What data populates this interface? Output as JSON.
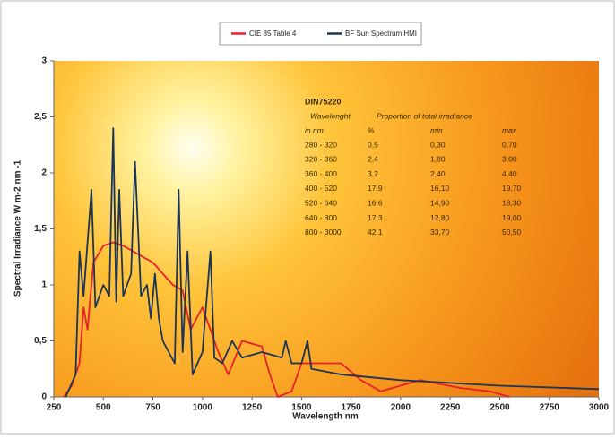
{
  "chart_data": {
    "type": "line",
    "xlabel": "Wavelength  nm",
    "ylabel": "Spectral Irradiance  W m-2 nm -1",
    "xlim": [
      250,
      3000
    ],
    "ylim": [
      0,
      3
    ],
    "xticks": [
      250,
      500,
      750,
      1000,
      1250,
      1500,
      1750,
      2000,
      2250,
      2500,
      2750,
      3000
    ],
    "yticks": [
      0,
      {
        "value": 0.5,
        "label": "0,5"
      },
      1,
      {
        "value": 1.5,
        "label": "1,5"
      },
      2,
      {
        "value": 2.5,
        "label": "2,5"
      },
      3
    ],
    "series": [
      {
        "name": "CIE 85 Table 4",
        "color": "#e8202a",
        "x": [
          300,
          340,
          380,
          400,
          420,
          450,
          500,
          550,
          600,
          650,
          700,
          750,
          800,
          850,
          900,
          940,
          1000,
          1080,
          1130,
          1200,
          1300,
          1340,
          1380,
          1450,
          1500,
          1700,
          1800,
          1900,
          2000,
          2100,
          2300,
          2450,
          2550
        ],
        "values": [
          0,
          0.1,
          0.3,
          0.8,
          0.6,
          1.2,
          1.35,
          1.38,
          1.35,
          1.3,
          1.25,
          1.2,
          1.1,
          1.0,
          0.95,
          0.6,
          0.8,
          0.4,
          0.2,
          0.5,
          0.45,
          0.2,
          0.0,
          0.05,
          0.3,
          0.3,
          0.15,
          0.05,
          0.1,
          0.15,
          0.08,
          0.05,
          0
        ]
      },
      {
        "name": "BF Sun Spectrum HMI",
        "color": "#1c3557",
        "x": [
          310,
          360,
          380,
          400,
          440,
          460,
          500,
          530,
          550,
          565,
          580,
          600,
          640,
          660,
          690,
          720,
          740,
          760,
          780,
          800,
          860,
          880,
          900,
          925,
          950,
          1000,
          1040,
          1060,
          1100,
          1150,
          1200,
          1300,
          1400,
          1420,
          1450,
          1500,
          1530,
          1550,
          1700,
          2000,
          2500,
          3000
        ],
        "values": [
          0,
          0.2,
          1.3,
          0.9,
          1.85,
          0.8,
          1.0,
          0.9,
          2.4,
          0.85,
          1.85,
          0.9,
          1.1,
          2.1,
          0.9,
          1.0,
          0.7,
          1.1,
          0.7,
          0.5,
          0.3,
          1.85,
          0.4,
          1.3,
          0.2,
          0.4,
          1.3,
          0.35,
          0.3,
          0.5,
          0.35,
          0.4,
          0.35,
          0.5,
          0.3,
          0.3,
          0.5,
          0.25,
          0.2,
          0.15,
          0.1,
          0.07
        ]
      }
    ],
    "table": {
      "title": "DIN75220",
      "header": [
        "Wavelenght",
        "Proportion of total irradiance"
      ],
      "columns": [
        "in nm",
        "%",
        "min",
        "max"
      ],
      "rows": [
        [
          "280 - 320",
          "0,5",
          "0,30",
          "0,70"
        ],
        [
          "320 - 360",
          "2,4",
          "1,80",
          "3,00"
        ],
        [
          "360 - 400",
          "3,2",
          "2,40",
          "4,40"
        ],
        [
          "400 - 520",
          "17,9",
          "16,10",
          "19,70"
        ],
        [
          "520 - 640",
          "16,6",
          "14,90",
          "18,30"
        ],
        [
          "640 - 800",
          "17,3",
          "12,80",
          "19,00"
        ],
        [
          "800 - 3000",
          "42,1",
          "33,70",
          "50,50"
        ]
      ]
    }
  }
}
